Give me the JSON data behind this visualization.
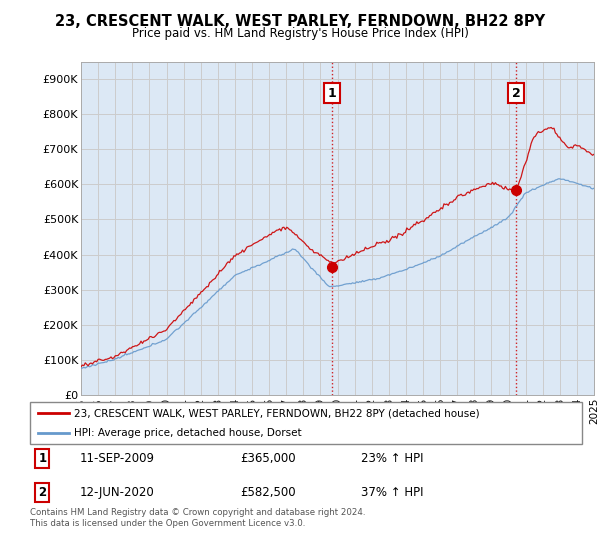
{
  "title": "23, CRESCENT WALK, WEST PARLEY, FERNDOWN, BH22 8PY",
  "subtitle": "Price paid vs. HM Land Registry's House Price Index (HPI)",
  "legend_label1": "23, CRESCENT WALK, WEST PARLEY, FERNDOWN, BH22 8PY (detached house)",
  "legend_label2": "HPI: Average price, detached house, Dorset",
  "annotation1_label": "1",
  "annotation1_date": "11-SEP-2009",
  "annotation1_price": "£365,000",
  "annotation1_hpi": "23% ↑ HPI",
  "annotation2_label": "2",
  "annotation2_date": "12-JUN-2020",
  "annotation2_price": "£582,500",
  "annotation2_hpi": "37% ↑ HPI",
  "footer": "Contains HM Land Registry data © Crown copyright and database right 2024.\nThis data is licensed under the Open Government Licence v3.0.",
  "line1_color": "#cc0000",
  "line2_color": "#6699cc",
  "vline_color": "#cc0000",
  "grid_color": "#cccccc",
  "background_color": "#dce8f5",
  "ylim": [
    0,
    950000
  ],
  "yticks": [
    0,
    100000,
    200000,
    300000,
    400000,
    500000,
    600000,
    700000,
    800000,
    900000
  ],
  "ytick_labels": [
    "£0",
    "£100K",
    "£200K",
    "£300K",
    "£400K",
    "£500K",
    "£600K",
    "£700K",
    "£800K",
    "£900K"
  ],
  "purchase1_year": 2009.7,
  "purchase1_value": 365000,
  "purchase2_year": 2020.45,
  "purchase2_value": 582500,
  "xstart": 1995,
  "xend": 2025
}
